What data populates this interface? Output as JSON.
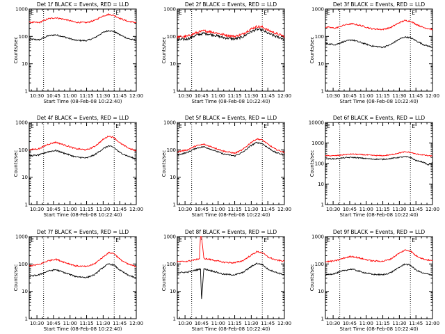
{
  "figure": {
    "x_tick_labels": [
      "10:30",
      "10:45",
      "11:00",
      "11:15",
      "11:30",
      "11:45",
      "12:00"
    ],
    "y_tick_labels": [
      "1",
      "10",
      "100",
      "1000"
    ],
    "y_tick_labels_6f": [
      "1",
      "10",
      "100",
      "1000",
      "10000"
    ],
    "marker_left": "E",
    "marker_right": "E"
  },
  "colors": {
    "events": "#000000",
    "lld": "#ff0000",
    "background": "#ffffff"
  },
  "chart_data": [
    {
      "type": "line",
      "title": "Det 1f BLACK = Events, RED = LLD",
      "xlabel": "Start Time (08-Feb-08 10:22:40)",
      "ylabel": "Counts/sec",
      "xlim": [
        "10:23",
        "12:00"
      ],
      "ylim": [
        1,
        1000
      ],
      "yscale": "log",
      "vlines": [
        "10:36",
        "11:40"
      ],
      "x": [
        "10:23",
        "10:32",
        "10:40",
        "10:47",
        "10:55",
        "11:05",
        "11:15",
        "11:22",
        "11:30",
        "11:35",
        "11:40",
        "11:45",
        "11:52",
        "12:00"
      ],
      "series": [
        {
          "name": "Events",
          "values": [
            80,
            75,
            105,
            115,
            95,
            72,
            70,
            88,
            140,
            165,
            150,
            115,
            85,
            70
          ]
        },
        {
          "name": "LLD",
          "values": [
            330,
            320,
            440,
            480,
            420,
            330,
            320,
            380,
            560,
            640,
            580,
            460,
            360,
            320
          ]
        }
      ]
    },
    {
      "type": "line",
      "title": "Det 2f BLACK = Events, RED = LLD",
      "xlabel": "Start Time (08-Feb-08 10:22:40)",
      "ylabel": "Counts/sec",
      "xlim": [
        "10:23",
        "12:00"
      ],
      "ylim": [
        1,
        1000
      ],
      "yscale": "log",
      "vlines": [
        "10:36",
        "11:40"
      ],
      "x": [
        "10:23",
        "10:32",
        "10:40",
        "10:47",
        "10:55",
        "11:05",
        "11:15",
        "11:22",
        "11:30",
        "11:35",
        "11:40",
        "11:45",
        "11:52",
        "12:00"
      ],
      "series": [
        {
          "name": "Events",
          "values": [
            75,
            80,
            110,
            130,
            115,
            90,
            80,
            95,
            150,
            180,
            170,
            130,
            100,
            80
          ]
        },
        {
          "name": "LLD",
          "values": [
            95,
            100,
            135,
            160,
            145,
            115,
            100,
            120,
            190,
            230,
            220,
            170,
            130,
            100
          ]
        }
      ]
    },
    {
      "type": "line",
      "title": "Det 3f BLACK = Events, RED = LLD",
      "xlabel": "Start Time (08-Feb-08 10:22:40)",
      "ylabel": "Counts/sec",
      "xlim": [
        "10:23",
        "12:00"
      ],
      "ylim": [
        1,
        1000
      ],
      "yscale": "log",
      "vlines": [
        "10:36",
        "11:40"
      ],
      "x": [
        "10:23",
        "10:32",
        "10:40",
        "10:47",
        "10:55",
        "11:05",
        "11:15",
        "11:22",
        "11:30",
        "11:35",
        "11:40",
        "11:45",
        "11:52",
        "12:00"
      ],
      "series": [
        {
          "name": "Events",
          "values": [
            55,
            50,
            65,
            75,
            60,
            45,
            40,
            50,
            80,
            95,
            90,
            70,
            50,
            40
          ]
        },
        {
          "name": "LLD",
          "values": [
            220,
            200,
            260,
            290,
            250,
            190,
            180,
            210,
            320,
            380,
            360,
            280,
            210,
            180
          ]
        }
      ]
    },
    {
      "type": "line",
      "title": "Det 4f BLACK = Events, RED = LLD",
      "xlabel": "Start Time (08-Feb-08 10:22:40)",
      "ylabel": "Counts/sec",
      "xlim": [
        "10:23",
        "12:00"
      ],
      "ylim": [
        1,
        1000
      ],
      "yscale": "log",
      "vlines": [
        "10:36",
        "11:40"
      ],
      "x": [
        "10:23",
        "10:32",
        "10:40",
        "10:47",
        "10:55",
        "11:05",
        "11:15",
        "11:22",
        "11:30",
        "11:35",
        "11:40",
        "11:45",
        "11:52",
        "12:00"
      ],
      "series": [
        {
          "name": "Events",
          "values": [
            60,
            65,
            85,
            95,
            75,
            55,
            50,
            65,
            110,
            140,
            120,
            80,
            60,
            45
          ]
        },
        {
          "name": "LLD",
          "values": [
            100,
            110,
            160,
            190,
            150,
            110,
            100,
            130,
            240,
            320,
            280,
            180,
            120,
            90
          ]
        }
      ]
    },
    {
      "type": "line",
      "title": "Det 5f BLACK = Events, RED = LLD",
      "xlabel": "Start Time (08-Feb-08 10:22:40)",
      "ylabel": "Counts/sec",
      "xlim": [
        "10:23",
        "12:00"
      ],
      "ylim": [
        1,
        1000
      ],
      "yscale": "log",
      "vlines": [
        "10:36",
        "11:40"
      ],
      "x": [
        "10:23",
        "10:32",
        "10:40",
        "10:47",
        "10:55",
        "11:05",
        "11:15",
        "11:22",
        "11:30",
        "11:35",
        "11:40",
        "11:45",
        "11:52",
        "12:00"
      ],
      "series": [
        {
          "name": "Events",
          "values": [
            65,
            80,
            115,
            130,
            100,
            70,
            60,
            80,
            145,
            185,
            170,
            120,
            80,
            65
          ]
        },
        {
          "name": "LLD",
          "values": [
            85,
            100,
            140,
            160,
            125,
            90,
            75,
            100,
            190,
            250,
            230,
            160,
            105,
            80
          ]
        }
      ]
    },
    {
      "type": "line",
      "title": "Det 6f BLACK = Events, RED = LLD",
      "xlabel": "Start Time (08-Feb-08 10:22:40)",
      "ylabel": "Counts/sec",
      "xlim": [
        "10:23",
        "12:00"
      ],
      "ylim": [
        1,
        10000
      ],
      "yscale": "log",
      "vlines": [
        "10:36",
        "11:40"
      ],
      "x": [
        "10:23",
        "10:32",
        "10:40",
        "10:47",
        "10:55",
        "11:05",
        "11:15",
        "11:22",
        "11:30",
        "11:35",
        "11:40",
        "11:45",
        "11:52",
        "11:56",
        "12:00"
      ],
      "series": [
        {
          "name": "Events",
          "values": [
            170,
            170,
            190,
            200,
            185,
            165,
            160,
            175,
            200,
            215,
            200,
            140,
            115,
            85,
            110
          ]
        },
        {
          "name": "LLD",
          "values": [
            240,
            240,
            270,
            290,
            275,
            250,
            240,
            265,
            330,
            370,
            350,
            290,
            260,
            240,
            230
          ]
        }
      ]
    },
    {
      "type": "line",
      "title": "Det 7f BLACK = Events, RED = LLD",
      "xlabel": "Start Time (08-Feb-08 10:22:40)",
      "ylabel": "Counts/sec",
      "xlim": [
        "10:23",
        "12:00"
      ],
      "ylim": [
        1,
        1000
      ],
      "yscale": "log",
      "vlines": [
        "10:36",
        "11:40"
      ],
      "x": [
        "10:23",
        "10:32",
        "10:40",
        "10:47",
        "10:55",
        "11:05",
        "11:15",
        "11:22",
        "11:30",
        "11:35",
        "11:40",
        "11:45",
        "11:52",
        "12:00"
      ],
      "series": [
        {
          "name": "Events",
          "values": [
            35,
            40,
            55,
            62,
            48,
            35,
            32,
            40,
            75,
            100,
            90,
            60,
            40,
            30
          ]
        },
        {
          "name": "LLD",
          "values": [
            85,
            95,
            130,
            150,
            115,
            85,
            80,
            100,
            180,
            260,
            240,
            150,
            100,
            80
          ]
        }
      ]
    },
    {
      "type": "line",
      "title": "Det 8f BLACK = Events, RED = LLD",
      "xlabel": "Start Time (08-Feb-08 10:22:40)",
      "ylabel": "Counts/sec",
      "xlim": [
        "10:23",
        "12:00"
      ],
      "ylim": [
        1,
        1000
      ],
      "yscale": "log",
      "vlines": [
        "10:36",
        "11:40"
      ],
      "x": [
        "10:23",
        "10:32",
        "10:40",
        "10:43",
        "10:44",
        "10:45",
        "10:47",
        "10:55",
        "11:05",
        "11:15",
        "11:22",
        "11:30",
        "11:35",
        "11:40",
        "11:45",
        "11:52",
        "12:00"
      ],
      "series": [
        {
          "name": "Events",
          "values": [
            48,
            50,
            60,
            64,
            66,
            5,
            66,
            55,
            42,
            40,
            48,
            80,
            105,
            95,
            65,
            50,
            40
          ]
        },
        {
          "name": "LLD",
          "values": [
            120,
            125,
            145,
            155,
            1000,
            1000,
            160,
            140,
            115,
            110,
            130,
            210,
            280,
            260,
            180,
            140,
            125
          ]
        }
      ]
    },
    {
      "type": "line",
      "title": "Det 9f BLACK = Events, RED = LLD",
      "xlabel": "Start Time (08-Feb-08 10:22:40)",
      "ylabel": "Counts/sec",
      "xlim": [
        "10:23",
        "12:00"
      ],
      "ylim": [
        1,
        1000
      ],
      "yscale": "log",
      "vlines": [
        "10:36",
        "11:40"
      ],
      "x": [
        "10:23",
        "10:32",
        "10:40",
        "10:47",
        "10:55",
        "11:05",
        "11:15",
        "11:22",
        "11:30",
        "11:35",
        "11:40",
        "11:45",
        "11:52",
        "12:00"
      ],
      "series": [
        {
          "name": "Events",
          "values": [
            40,
            45,
            58,
            65,
            52,
            42,
            40,
            48,
            75,
            100,
            90,
            60,
            45,
            40
          ]
        },
        {
          "name": "LLD",
          "values": [
            120,
            130,
            165,
            190,
            160,
            130,
            125,
            150,
            250,
            320,
            300,
            200,
            150,
            130
          ]
        }
      ]
    }
  ]
}
